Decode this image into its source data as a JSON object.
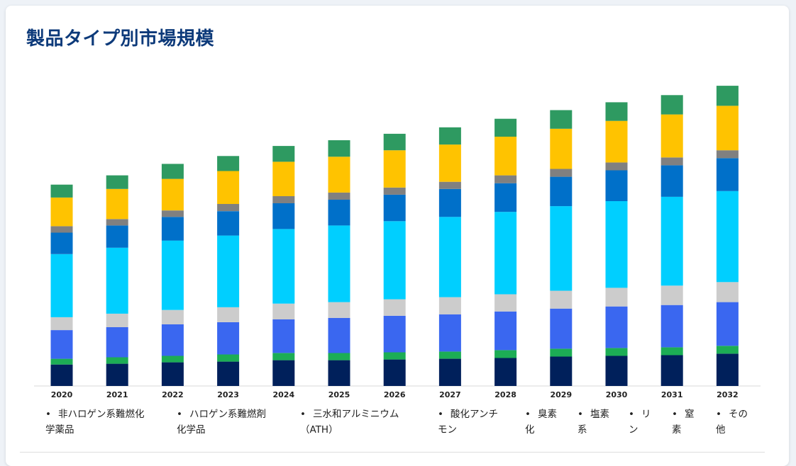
{
  "title": "製品タイプ別市場規模",
  "chart_data": {
    "type": "bar",
    "stacked": true,
    "categories": [
      "2020",
      "2021",
      "2022",
      "2023",
      "2024",
      "2025",
      "2026",
      "2027",
      "2028",
      "2029",
      "2030",
      "2031",
      "2032"
    ],
    "series": [
      {
        "name": "非ハロゲン系難燃化学品",
        "color": "#00205b",
        "values": [
          30,
          31,
          33,
          34,
          36,
          36,
          37,
          38,
          39,
          41,
          42,
          43,
          45
        ]
      },
      {
        "name": "ハロゲン系難燃剤化学品",
        "color": "#1cad55",
        "values": [
          8,
          9,
          9,
          10,
          10,
          10,
          10,
          10,
          11,
          11,
          11,
          11,
          11
        ]
      },
      {
        "name": "三水和アルミニウム（ATH）",
        "color": "#3a67f0",
        "values": [
          40,
          42,
          44,
          45,
          47,
          49,
          51,
          52,
          54,
          56,
          58,
          59,
          61
        ]
      },
      {
        "name": "酸化アンチモン",
        "color": "#cccccc",
        "values": [
          18,
          19,
          20,
          21,
          22,
          22,
          23,
          24,
          24,
          25,
          26,
          27,
          28
        ]
      },
      {
        "name": "臭素化",
        "color": "#00cfff",
        "values": [
          88,
          92,
          97,
          100,
          104,
          107,
          109,
          112,
          115,
          118,
          121,
          124,
          127
        ]
      },
      {
        "name": "塩素系",
        "color": "#0070c9",
        "values": [
          30,
          31,
          33,
          34,
          36,
          36,
          37,
          39,
          40,
          41,
          43,
          44,
          46
        ]
      },
      {
        "name": "リン",
        "color": "#808080",
        "values": [
          9,
          9,
          9,
          10,
          10,
          10,
          10,
          10,
          11,
          11,
          11,
          11,
          11
        ]
      },
      {
        "name": "窒素",
        "color": "#ffc300",
        "values": [
          40,
          42,
          44,
          46,
          48,
          50,
          52,
          52,
          54,
          56,
          58,
          60,
          62
        ]
      },
      {
        "name": "その他",
        "color": "#2e9a61",
        "values": [
          18,
          19,
          21,
          21,
          22,
          23,
          23,
          24,
          25,
          26,
          26,
          27,
          28
        ]
      }
    ],
    "ylim": [
      0,
      430
    ],
    "grid": false,
    "legend_position": "bottom"
  },
  "legend": [
    {
      "lines": [
        "非ハロゲン系難燃化",
        "学薬品"
      ]
    },
    {
      "lines": [
        "ハロゲン系難燃剤",
        "化学品"
      ]
    },
    {
      "lines": [
        "三水和アルミニウム",
        "（ATH）"
      ]
    },
    {
      "lines": [
        "酸化アンチ",
        "モン"
      ]
    },
    {
      "lines": [
        "臭素",
        "化"
      ]
    },
    {
      "lines": [
        "塩素",
        "系"
      ]
    },
    {
      "lines": [
        "リ",
        "ン"
      ]
    },
    {
      "lines": [
        "窒",
        "素"
      ]
    },
    {
      "lines": [
        "その",
        "他"
      ]
    }
  ]
}
